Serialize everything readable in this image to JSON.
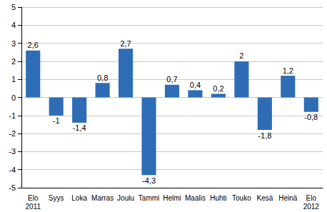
{
  "chart_data": {
    "type": "bar",
    "categories": [
      "Elo\n2011",
      "Syys",
      "Loka",
      "Marras",
      "Joulu",
      "Tammi",
      "Helmi",
      "Maalis",
      "Huhti",
      "Touko",
      "Kesä",
      "Heinä",
      "Elo\n2012"
    ],
    "values": [
      2.6,
      -1,
      -1.4,
      0.8,
      2.7,
      -4.3,
      0.7,
      0.4,
      0.2,
      2,
      -1.8,
      1.2,
      -0.8
    ],
    "value_labels": [
      "2,6",
      "-1",
      "-1,4",
      "0,8",
      "2,7",
      "-4,3",
      "0,7",
      "0,4",
      "0,2",
      "2",
      "-1,8",
      "1,2",
      "-0,8"
    ],
    "color": "#2e6db5",
    "ylim": [
      -5,
      5
    ],
    "yticks": [
      -5,
      -4,
      -3,
      -2,
      -1,
      0,
      1,
      2,
      3,
      4,
      5
    ],
    "grid": true,
    "data_labels": true
  }
}
